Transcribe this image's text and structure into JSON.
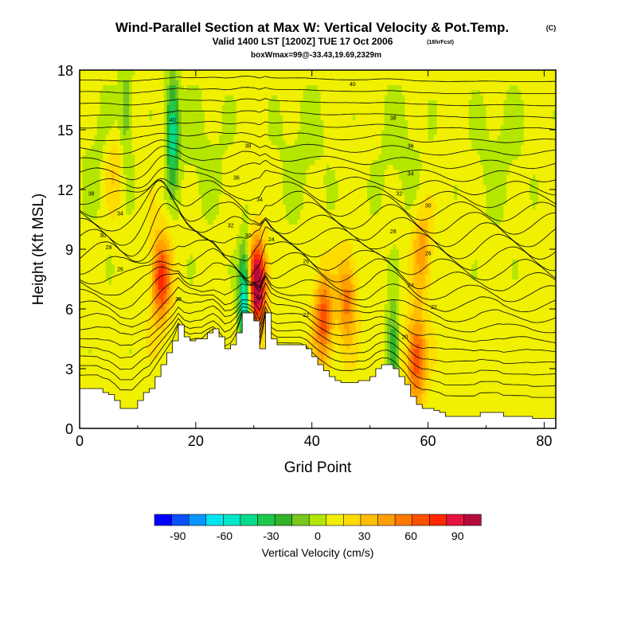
{
  "chart_data": {
    "type": "heatmap",
    "title": "Wind-Parallel Section at Max W: Vertical Velocity & Pot.Temp.",
    "title_mark": "(C)",
    "subtitle": "Valid 1400 LST [1200Z] TUE 17 Oct 2006",
    "subtitle_note": "(18hrFcst)",
    "subtitle2": "boxWmax=99@-33.43,19.69,2329m",
    "xlabel": "Grid Point",
    "ylabel": "Height (Kft MSL)",
    "xlim": [
      0,
      82
    ],
    "ylim": [
      0,
      18
    ],
    "x_ticks": [
      "0",
      "20",
      "40",
      "60",
      "80"
    ],
    "x_tick_values": [
      0,
      20,
      40,
      60,
      80
    ],
    "y_ticks": [
      "0",
      "3",
      "6",
      "9",
      "12",
      "15",
      "18"
    ],
    "y_tick_values": [
      0,
      3,
      6,
      9,
      12,
      15,
      18
    ],
    "colorbar": {
      "label": "Vertical Velocity (cm/s)",
      "tick_labels": [
        "-90",
        "-60",
        "-30",
        "0",
        "30",
        "60",
        "90"
      ],
      "tick_values": [
        -90,
        -60,
        -30,
        0,
        30,
        60,
        90
      ],
      "range": [
        -105,
        105
      ],
      "step": 10,
      "colors": [
        "#0000ff",
        "#0a50ff",
        "#0a96ff",
        "#00e6f0",
        "#00e6c8",
        "#00dc8c",
        "#1ec84e",
        "#32b428",
        "#78c81e",
        "#b4e600",
        "#f0f000",
        "#ffdc00",
        "#ffbe00",
        "#ffa000",
        "#ff7800",
        "#ff5000",
        "#ff2800",
        "#e6143c",
        "#b40a3c"
      ]
    },
    "terrain_height_kft": [
      2.0,
      2.0,
      2.0,
      2.0,
      1.8,
      1.7,
      1.4,
      1.0,
      1.0,
      1.0,
      1.4,
      1.8,
      2.0,
      2.6,
      3.2,
      3.8,
      4.4,
      5.2,
      4.6,
      4.4,
      4.5,
      4.5,
      4.8,
      5.0,
      4.6,
      4.0,
      4.2,
      4.8,
      5.8,
      5.8,
      5.4,
      4.0,
      5.8,
      4.5,
      4.2,
      4.2,
      4.2,
      4.2,
      4.2,
      4.0,
      3.6,
      3.2,
      2.9,
      2.6,
      2.4,
      2.3,
      2.3,
      2.3,
      2.4,
      2.4,
      2.6,
      3.0,
      3.2,
      3.2,
      3.0,
      2.6,
      2.2,
      1.6,
      1.2,
      1.0,
      1.0,
      0.9,
      0.8,
      0.6,
      0.6,
      0.6,
      0.6,
      0.6,
      0.6,
      0.8,
      0.8,
      0.8,
      0.8,
      0.6,
      0.6,
      0.6,
      0.6,
      0.6,
      0.5,
      0.5,
      0.5,
      0.5,
      0.5
    ],
    "updrafts": [
      {
        "x": 14,
        "z": 7.5,
        "peak_cms": 60
      },
      {
        "x": 30.5,
        "z": 7.2,
        "peak_cms": 95
      },
      {
        "x": 42,
        "z": 5.5,
        "peak_cms": 52
      },
      {
        "x": 46,
        "z": 6.5,
        "peak_cms": 40
      },
      {
        "x": 58,
        "z": 3.5,
        "peak_cms": 55
      },
      {
        "x": 59,
        "z": 9.0,
        "peak_cms": 30
      },
      {
        "x": 6,
        "z": 13.0,
        "peak_cms": 20
      }
    ],
    "downdrafts": [
      {
        "x": 16,
        "z": 15.0,
        "peak_cms": -55
      },
      {
        "x": 28.5,
        "z": 6.5,
        "peak_cms": -80
      },
      {
        "x": 54,
        "z": 4.0,
        "peak_cms": -35
      },
      {
        "x": 8,
        "z": 16.0,
        "peak_cms": -20
      }
    ],
    "isentrope_labels": [
      {
        "text": "40",
        "x": 47,
        "z": 17.3
      },
      {
        "text": "40",
        "x": 16,
        "z": 15.5
      },
      {
        "text": "38",
        "x": 54,
        "z": 15.6
      },
      {
        "text": "38",
        "x": 29,
        "z": 14.2
      },
      {
        "text": "36",
        "x": 57,
        "z": 14.2
      },
      {
        "text": "36",
        "x": 27,
        "z": 12.6
      },
      {
        "text": "34",
        "x": 57,
        "z": 12.8
      },
      {
        "text": "34",
        "x": 31,
        "z": 11.5
      },
      {
        "text": "34",
        "x": 7,
        "z": 10.8
      },
      {
        "text": "32",
        "x": 55,
        "z": 11.8
      },
      {
        "text": "32",
        "x": 26,
        "z": 10.2
      },
      {
        "text": "30",
        "x": 60,
        "z": 11.2
      },
      {
        "text": "30",
        "x": 29,
        "z": 9.7
      },
      {
        "text": "30",
        "x": 4,
        "z": 9.7
      },
      {
        "text": "28",
        "x": 54,
        "z": 9.9
      },
      {
        "text": "28",
        "x": 5,
        "z": 9.1
      },
      {
        "text": "26",
        "x": 60,
        "z": 8.8
      },
      {
        "text": "26",
        "x": 39,
        "z": 8.4
      },
      {
        "text": "26",
        "x": 7,
        "z": 8.0
      },
      {
        "text": "24",
        "x": 57,
        "z": 7.2
      },
      {
        "text": "24",
        "x": 33,
        "z": 9.5
      },
      {
        "text": "24",
        "x": 31,
        "z": 6.6
      },
      {
        "text": "22",
        "x": 39,
        "z": 5.7
      },
      {
        "text": "22",
        "x": 61,
        "z": 6.1
      },
      {
        "text": "20",
        "x": 56,
        "z": 4.6
      },
      {
        "text": "38",
        "x": 2,
        "z": 11.8
      },
      {
        "text": "38",
        "x": 17,
        "z": 6.5
      }
    ]
  }
}
